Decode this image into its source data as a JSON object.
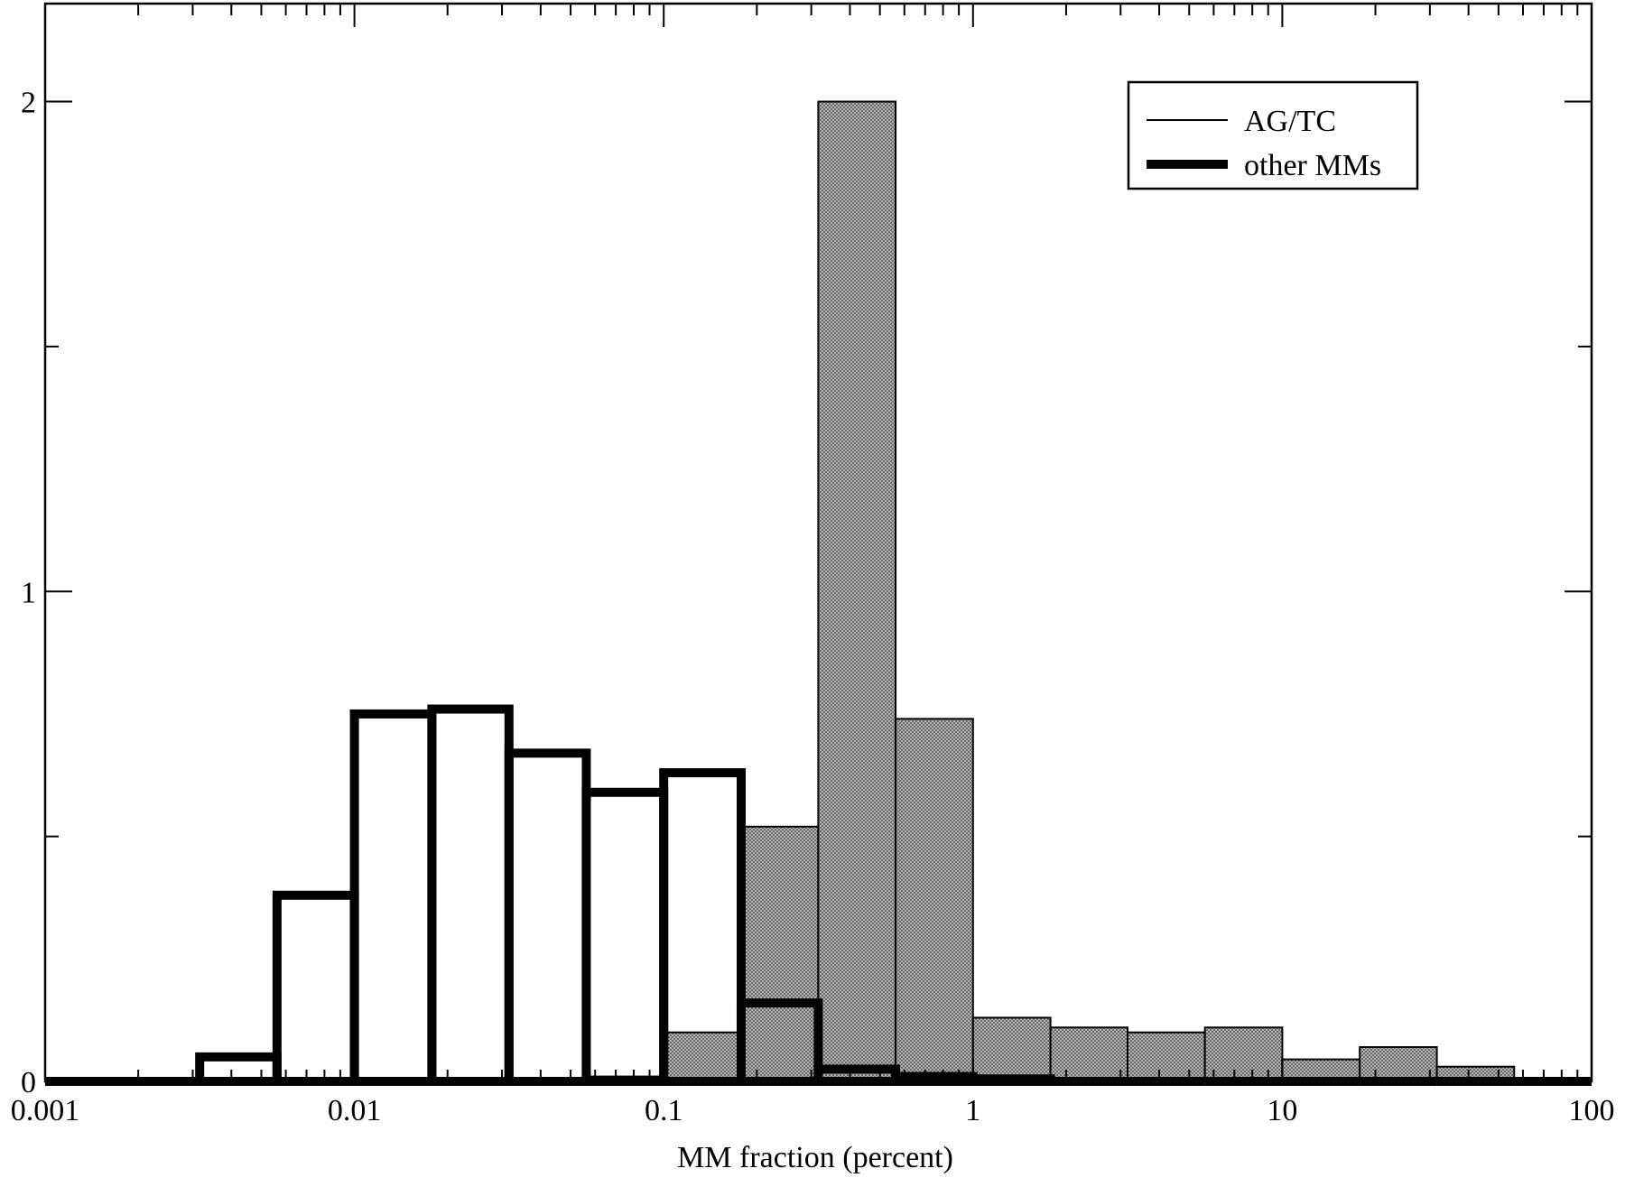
{
  "chart_data": {
    "type": "bar",
    "title": "",
    "xlabel": "MM fraction (percent)",
    "ylabel": "",
    "x_scale": "log",
    "xlim": [
      0.001,
      100
    ],
    "ylim": [
      0,
      2.2
    ],
    "x_major_ticks": [
      0.001,
      0.01,
      0.1,
      1,
      10,
      100
    ],
    "x_tick_labels": [
      "0.001",
      "0.01",
      "0.1",
      "1",
      "10",
      "100"
    ],
    "y_major_ticks": [
      0,
      1,
      2
    ],
    "y_tick_labels": [
      "0",
      "1",
      "2"
    ],
    "y_minor_ticks": [
      0.5,
      1.5
    ],
    "grid": false,
    "legend_position": "top-right",
    "series": [
      {
        "name": "AG/TC",
        "style": "thin outline, stippled gray fill",
        "fill_color": "#a9a9a9",
        "bins": [
          {
            "x0": 0.001,
            "x1": 0.00316,
            "value": 0.0
          },
          {
            "x0": 0.00316,
            "x1": 0.00562,
            "value": 0.0
          },
          {
            "x0": 0.00562,
            "x1": 0.01,
            "value": 0.0
          },
          {
            "x0": 0.01,
            "x1": 0.0178,
            "value": 0.0
          },
          {
            "x0": 0.0178,
            "x1": 0.0316,
            "value": 0.005
          },
          {
            "x0": 0.0316,
            "x1": 0.0562,
            "value": 0.005
          },
          {
            "x0": 0.0562,
            "x1": 0.1,
            "value": 0.01
          },
          {
            "x0": 0.1,
            "x1": 0.178,
            "value": 0.1
          },
          {
            "x0": 0.178,
            "x1": 0.316,
            "value": 0.52
          },
          {
            "x0": 0.316,
            "x1": 0.562,
            "value": 2.0
          },
          {
            "x0": 0.562,
            "x1": 1.0,
            "value": 0.74
          },
          {
            "x0": 1.0,
            "x1": 1.78,
            "value": 0.13
          },
          {
            "x0": 1.78,
            "x1": 3.16,
            "value": 0.11
          },
          {
            "x0": 3.16,
            "x1": 5.62,
            "value": 0.1
          },
          {
            "x0": 5.62,
            "x1": 10.0,
            "value": 0.11
          },
          {
            "x0": 10.0,
            "x1": 17.8,
            "value": 0.045
          },
          {
            "x0": 17.8,
            "x1": 31.6,
            "value": 0.07
          },
          {
            "x0": 31.6,
            "x1": 56.2,
            "value": 0.03
          },
          {
            "x0": 56.2,
            "x1": 100.0,
            "value": 0.0
          }
        ]
      },
      {
        "name": "other MMs",
        "style": "thick outline, no fill",
        "bins": [
          {
            "x0": 0.001,
            "x1": 0.00316,
            "value": 0.0
          },
          {
            "x0": 0.00316,
            "x1": 0.00562,
            "value": 0.05
          },
          {
            "x0": 0.00562,
            "x1": 0.01,
            "value": 0.38
          },
          {
            "x0": 0.01,
            "x1": 0.0178,
            "value": 0.75
          },
          {
            "x0": 0.0178,
            "x1": 0.0316,
            "value": 0.76
          },
          {
            "x0": 0.0316,
            "x1": 0.0562,
            "value": 0.67
          },
          {
            "x0": 0.0562,
            "x1": 0.1,
            "value": 0.59
          },
          {
            "x0": 0.1,
            "x1": 0.178,
            "value": 0.63
          },
          {
            "x0": 0.178,
            "x1": 0.316,
            "value": 0.16
          },
          {
            "x0": 0.316,
            "x1": 0.562,
            "value": 0.025
          },
          {
            "x0": 0.562,
            "x1": 1.0,
            "value": 0.01
          },
          {
            "x0": 1.0,
            "x1": 1.78,
            "value": 0.005
          },
          {
            "x0": 1.78,
            "x1": 3.16,
            "value": 0.0
          },
          {
            "x0": 3.16,
            "x1": 5.62,
            "value": 0.0
          },
          {
            "x0": 5.62,
            "x1": 10.0,
            "value": 0.0
          },
          {
            "x0": 10.0,
            "x1": 17.8,
            "value": 0.0
          },
          {
            "x0": 17.8,
            "x1": 31.6,
            "value": 0.0
          },
          {
            "x0": 31.6,
            "x1": 56.2,
            "value": 0.0
          },
          {
            "x0": 56.2,
            "x1": 100.0,
            "value": 0.0
          }
        ]
      }
    ]
  }
}
